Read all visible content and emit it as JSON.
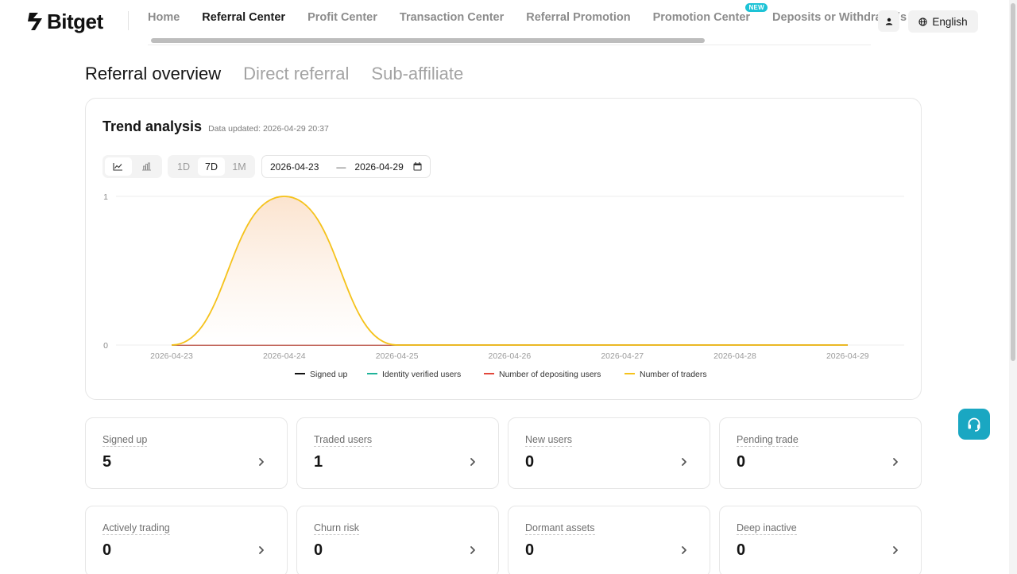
{
  "brand": {
    "name": "Bitget"
  },
  "nav": {
    "items": [
      {
        "label": "Home",
        "active": false
      },
      {
        "label": "Referral Center",
        "active": true
      },
      {
        "label": "Profit Center",
        "active": false
      },
      {
        "label": "Transaction Center",
        "active": false
      },
      {
        "label": "Referral Promotion",
        "active": false
      },
      {
        "label": "Promotion Center",
        "active": false,
        "badge": "NEW"
      },
      {
        "label": "Deposits or Withdrawals",
        "active": false
      }
    ],
    "user_icon": "user-icon",
    "language": {
      "label": "English",
      "icon": "globe-icon"
    }
  },
  "section_tabs": [
    {
      "label": "Referral overview",
      "active": true
    },
    {
      "label": "Direct referral",
      "active": false
    },
    {
      "label": "Sub-affiliate",
      "active": false
    }
  ],
  "trend": {
    "title": "Trend analysis",
    "updated_prefix": "Data updated:",
    "updated_at": "2026-04-29 20:37",
    "chart_types": [
      {
        "icon": "line-chart-icon",
        "active": true
      },
      {
        "icon": "bar-chart-icon",
        "active": false
      }
    ],
    "periods": [
      {
        "label": "1D",
        "active": false
      },
      {
        "label": "7D",
        "active": true
      },
      {
        "label": "1M",
        "active": false
      }
    ],
    "date_range": {
      "start": "2026-04-23",
      "separator": "—",
      "end": "2026-04-29",
      "icon": "calendar-icon"
    }
  },
  "chart_data": {
    "type": "area",
    "title": "",
    "xlabel": "",
    "ylabel": "",
    "categories": [
      "2026-04-23",
      "2026-04-24",
      "2026-04-25",
      "2026-04-26",
      "2026-04-27",
      "2026-04-28",
      "2026-04-29"
    ],
    "ylim": [
      0,
      1
    ],
    "yticks": [
      0,
      1
    ],
    "grid": true,
    "legend": "bottom-center",
    "series": [
      {
        "name": "Signed up",
        "color": "#111111",
        "values": [
          0,
          0,
          0,
          0,
          0,
          0,
          0
        ]
      },
      {
        "name": "Identity verified users",
        "color": "#20b39a",
        "values": [
          0,
          0,
          0,
          0,
          0,
          0,
          0
        ]
      },
      {
        "name": "Number of depositing users",
        "color": "#e2473b",
        "values": [
          0,
          0,
          0,
          0,
          0,
          0,
          0
        ]
      },
      {
        "name": "Number of traders",
        "color": "#f5c21b",
        "values": [
          0,
          1,
          0,
          0,
          0,
          0,
          0
        ]
      }
    ]
  },
  "stats": [
    {
      "label": "Signed up",
      "value": "5"
    },
    {
      "label": "Traded users",
      "value": "1"
    },
    {
      "label": "New users",
      "value": "0"
    },
    {
      "label": "Pending trade",
      "value": "0"
    },
    {
      "label": "Actively trading",
      "value": "0"
    },
    {
      "label": "Churn risk",
      "value": "0"
    },
    {
      "label": "Dormant assets",
      "value": "0"
    },
    {
      "label": "Deep inactive",
      "value": "0"
    }
  ],
  "support": {
    "icon": "headset-icon"
  }
}
